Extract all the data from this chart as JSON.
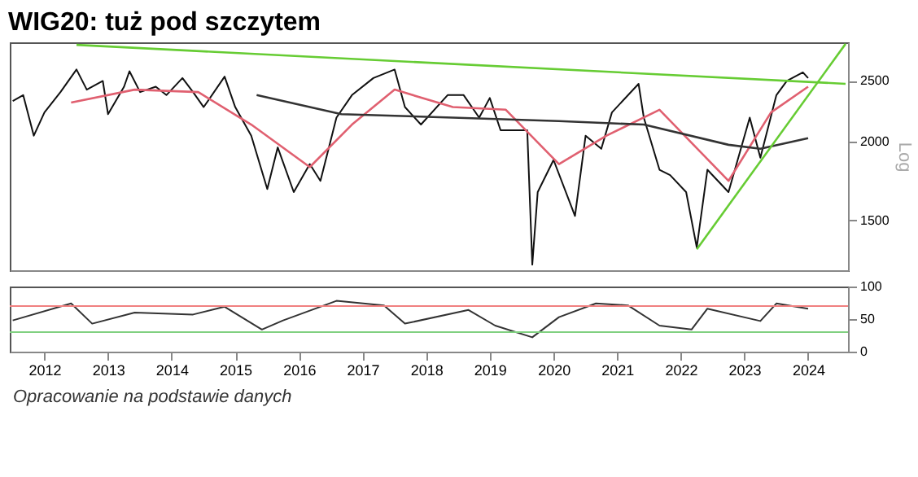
{
  "chart_data": [
    {
      "type": "line",
      "title": "WIG20: tuż pod szczytem",
      "log": true,
      "tick_labels": "y",
      "xlim": [
        "2011-12-15",
        "2025-02-15"
      ],
      "ylim": [
        1250,
        2880
      ],
      "yticks": [
        1500,
        2000,
        2500
      ],
      "ylabel": "Log",
      "series": [
        {
          "color": "#111111",
          "x": [
            "2012-01",
            "2012-03",
            "2012-05",
            "2012-07",
            "2012-10",
            "2013-01",
            "2013-03",
            "2013-06",
            "2013-07",
            "2013-10",
            "2013-11",
            "2014-01",
            "2014-04",
            "2014-06",
            "2014-09",
            "2014-11",
            "2015-01",
            "2015-05",
            "2015-07",
            "2015-10",
            "2016-01",
            "2016-03",
            "2016-06",
            "2016-09",
            "2016-11",
            "2017-02",
            "2017-05",
            "2017-09",
            "2018-01",
            "2018-03",
            "2018-06",
            "2018-11",
            "2019-02",
            "2019-05",
            "2019-07",
            "2019-09",
            "2020-02",
            "2020-03",
            "2020-04",
            "2020-07",
            "2020-11",
            "2021-01",
            "2021-04",
            "2021-06",
            "2021-11",
            "2021-12",
            "2022-03",
            "2022-05",
            "2022-08",
            "2022-10",
            "2022-12",
            "2023-04",
            "2023-08",
            "2023-10",
            "2024-01",
            "2024-03",
            "2024-06",
            "2024-07"
          ],
          "values": [
            2323,
            2374,
            2046,
            2228,
            2400,
            2607,
            2422,
            2500,
            2214,
            2448,
            2591,
            2400,
            2448,
            2374,
            2527,
            2400,
            2272,
            2540,
            2272,
            2046,
            1683,
            1960,
            1664,
            1844,
            1734,
            2186,
            2374,
            2527,
            2607,
            2272,
            2131,
            2374,
            2374,
            2186,
            2349,
            2087,
            2087,
            1276,
            1664,
            1872,
            1525,
            2046,
            1950,
            2228,
            2474,
            2186,
            1806,
            1771,
            1664,
            1359,
            1806,
            1664,
            2186,
            1888,
            2374,
            2500,
            2580,
            2527
          ]
        },
        {
          "color": "#e06070",
          "x": [
            "2012-12",
            "2013-12",
            "2014-12",
            "2015-10",
            "2016-09",
            "2017-05",
            "2018-01",
            "2018-12",
            "2019-10",
            "2020-08",
            "2021-05",
            "2022-03",
            "2023-04",
            "2023-12",
            "2024-07"
          ],
          "values": [
            2310,
            2422,
            2400,
            2131,
            1824,
            2131,
            2422,
            2272,
            2250,
            1844,
            2046,
            2250,
            1734,
            2228,
            2448
          ]
        },
        {
          "color": "#333333",
          "x": [
            "2015-11",
            "2017-03",
            "2018-12",
            "2020-08",
            "2021-12",
            "2023-04",
            "2023-10",
            "2024-07"
          ],
          "values": [
            2374,
            2214,
            2186,
            2158,
            2131,
            1979,
            1950,
            2027
          ]
        },
        {
          "color": "#66cc33",
          "x": [
            "2013-01",
            "2025-02"
          ],
          "values": [
            2853,
            2474
          ]
        },
        {
          "color": "#66cc33",
          "x": [
            "2022-10",
            "2025-02"
          ],
          "values": [
            1350,
            2864
          ]
        }
      ]
    },
    {
      "type": "line",
      "xlim": [
        "2011-12-15",
        "2025-02-15"
      ],
      "ylim": [
        0,
        100
      ],
      "yticks": [
        0,
        50,
        100
      ],
      "xticks": [
        {
          "value": "2012-07",
          "label": "2012"
        },
        {
          "value": "2013-07",
          "label": "2013"
        },
        {
          "value": "2014-07",
          "label": "2014"
        },
        {
          "value": "2015-07",
          "label": "2015"
        },
        {
          "value": "2016-07",
          "label": "2016"
        },
        {
          "value": "2017-07",
          "label": "2017"
        },
        {
          "value": "2018-07",
          "label": "2018"
        },
        {
          "value": "2019-07",
          "label": "2019"
        },
        {
          "value": "2020-07",
          "label": "2020"
        },
        {
          "value": "2021-07",
          "label": "2021"
        },
        {
          "value": "2022-07",
          "label": "2022"
        },
        {
          "value": "2023-07",
          "label": "2023"
        },
        {
          "value": "2024-07",
          "label": "2024"
        }
      ],
      "ref_lines": [
        {
          "axis": "y",
          "value": 70,
          "color": "#f08080"
        },
        {
          "axis": "y",
          "value": 30,
          "color": "#80d080"
        }
      ],
      "annotations": [
        "Opracowanie na podstawie danych"
      ],
      "series": [
        {
          "color": "#333333",
          "x": [
            "2012-01",
            "2012-12",
            "2013-04",
            "2013-12",
            "2014-11",
            "2015-05",
            "2015-12",
            "2016-04",
            "2017-02",
            "2017-11",
            "2018-03",
            "2019-03",
            "2019-08",
            "2020-03",
            "2020-08",
            "2021-03",
            "2021-09",
            "2022-03",
            "2022-09",
            "2022-12",
            "2023-10",
            "2024-01",
            "2024-07"
          ],
          "values": [
            48,
            74,
            43,
            60,
            57,
            69,
            34,
            48,
            78,
            71,
            43,
            64,
            40,
            22,
            53,
            74,
            71,
            40,
            34,
            66,
            47,
            74,
            66
          ]
        }
      ]
    }
  ]
}
